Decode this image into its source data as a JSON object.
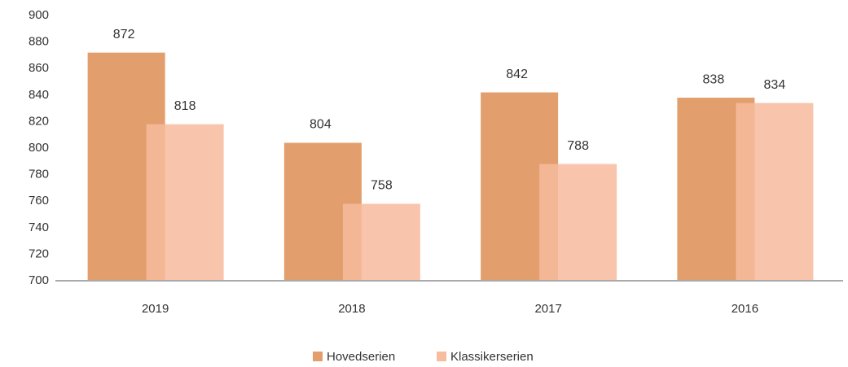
{
  "chart_data": {
    "type": "bar",
    "categories": [
      "2019",
      "2018",
      "2017",
      "2016"
    ],
    "series": [
      {
        "name": "Hovedserien",
        "color": "#e29e6c",
        "values": [
          872,
          804,
          842,
          838
        ]
      },
      {
        "name": "Klassikerserien",
        "color": "#f7bb9d",
        "values": [
          818,
          758,
          788,
          834
        ]
      }
    ],
    "ylim": [
      700,
      900
    ],
    "yticks": [
      700,
      720,
      740,
      760,
      780,
      800,
      820,
      840,
      860,
      880,
      900
    ],
    "grid": false,
    "legend": "bottom"
  }
}
